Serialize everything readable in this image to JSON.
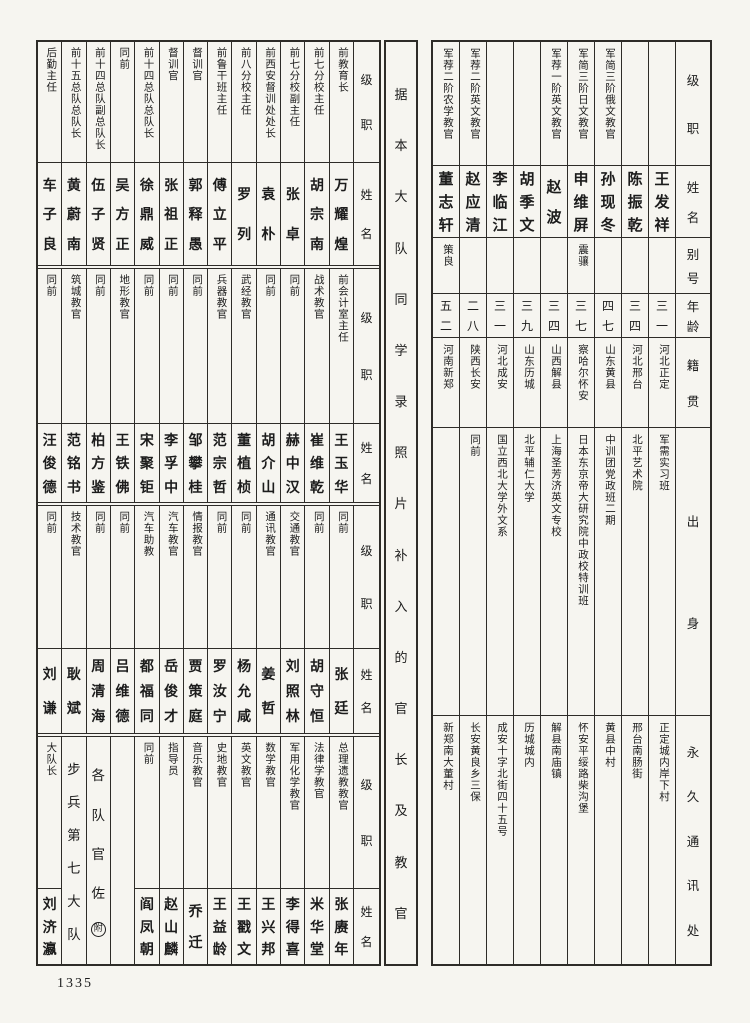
{
  "page": {
    "number": "1335"
  },
  "middle_title": "据本大队同学录照片补入的官长及教官",
  "colors": {
    "paper": "#f6f5f0",
    "ink": "#1c1c1c",
    "line": "#2e2c28"
  },
  "right_section": {
    "headers": {
      "rank": "级职",
      "name": "姓名",
      "alias": "别号",
      "age": "年龄",
      "native": "籍贯",
      "origin": "出身",
      "address": "永久通讯处"
    },
    "people": [
      {
        "rank": "",
        "name": "王发祥",
        "alias": "",
        "age": "三一",
        "native": "河北正定",
        "origin": "军需实习班",
        "address": "正定城内岸下村"
      },
      {
        "rank": "",
        "name": "陈振乾",
        "alias": "",
        "age": "三四",
        "native": "河北邢台",
        "origin": "北平艺术院",
        "address": "邢台南肠街"
      },
      {
        "rank": "军简三阶俄文教官",
        "name": "孙现冬",
        "alias": "",
        "age": "四七",
        "native": "山东黄县",
        "origin": "中训团党政班二期",
        "address": "黄县中村"
      },
      {
        "rank": "军简三阶日文教官",
        "name": "申维屏",
        "alias": "震骧",
        "age": "三七",
        "native": "察哈尔怀安",
        "origin": "日本东京帝大研究院中政校特训班",
        "address": "怀安平绥路柴沟堡"
      },
      {
        "rank": "军荐一阶英文教官",
        "name": "赵波",
        "alias": "",
        "age": "三四",
        "native": "山西解县",
        "origin": "上海圣芳济英文专校",
        "address": "解县南庙镇"
      },
      {
        "rank": "",
        "name": "胡季文",
        "alias": "",
        "age": "三九",
        "native": "山东历城",
        "origin": "北平辅仁大学",
        "address": "历城城内"
      },
      {
        "rank": "",
        "name": "李临江",
        "alias": "",
        "age": "三一",
        "native": "河北成安",
        "origin": "国立西北大学外文系",
        "address": "成安十字北街四十五号"
      },
      {
        "rank": "军荐二阶英文教官",
        "name": "赵应清",
        "alias": "",
        "age": "二八",
        "native": "陕西长安",
        "origin": "同前",
        "address": "长安黄良乡三保"
      },
      {
        "rank": "军荐二阶农学教官",
        "name": "董志轩",
        "alias": "策良",
        "age": "五二",
        "native": "河南新郑",
        "origin": "",
        "address": "新郑南大董村"
      }
    ]
  },
  "left_section": {
    "headers": {
      "rank": "级职",
      "name": "姓名"
    },
    "tiers": [
      {
        "people": [
          {
            "rank": "前教育长",
            "name": "万耀煌"
          },
          {
            "rank": "前七分校主任",
            "name": "胡宗南"
          },
          {
            "rank": "前七分校副主任",
            "name": "张卓"
          },
          {
            "rank": "前西安督训处处长",
            "name": "袁朴"
          },
          {
            "rank": "前八分校主任",
            "name": "罗列"
          },
          {
            "rank": "前鲁干班主任",
            "name": "傅立平"
          },
          {
            "rank": "督训官",
            "name": "郭释愚"
          },
          {
            "rank": "督训官",
            "name": "张祖正"
          },
          {
            "rank": "前十四总队总队长",
            "name": "徐鼎威"
          },
          {
            "rank": "同前",
            "name": "吴方正"
          },
          {
            "rank": "前十四总队副总队长",
            "name": "伍子贤"
          },
          {
            "rank": "前十五总队总队长",
            "name": "黄蔚南"
          },
          {
            "rank": "后勤主任",
            "name": "车子良"
          }
        ]
      },
      {
        "people": [
          {
            "rank": "前会计室主任",
            "name": "王玉华"
          },
          {
            "rank": "战术教官",
            "name": "崔维乾"
          },
          {
            "rank": "同前",
            "name": "赫中汉"
          },
          {
            "rank": "同前",
            "name": "胡介山"
          },
          {
            "rank": "武经教官",
            "name": "董植桢"
          },
          {
            "rank": "兵器教官",
            "name": "范宗哲"
          },
          {
            "rank": "同前",
            "name": "邹攀桂"
          },
          {
            "rank": "同前",
            "name": "李孚中"
          },
          {
            "rank": "同前",
            "name": "宋聚钜"
          },
          {
            "rank": "地形教官",
            "name": "王铁佛"
          },
          {
            "rank": "同前",
            "name": "柏方鉴"
          },
          {
            "rank": "筑城教官",
            "name": "范铭书"
          },
          {
            "rank": "同前",
            "name": "汪俊德"
          }
        ]
      },
      {
        "people": [
          {
            "rank": "同前",
            "name": "张廷"
          },
          {
            "rank": "同前",
            "name": "胡守恒"
          },
          {
            "rank": "交通教官",
            "name": "刘照林"
          },
          {
            "rank": "通讯教官",
            "name": "姜哲"
          },
          {
            "rank": "同前",
            "name": "杨允咸"
          },
          {
            "rank": "同前",
            "name": "罗汝宁"
          },
          {
            "rank": "情报教官",
            "name": "贾策庭"
          },
          {
            "rank": "汽车教官",
            "name": "岳俊才"
          },
          {
            "rank": "汽车助教",
            "name": "都福同"
          },
          {
            "rank": "同前",
            "name": "吕维德"
          },
          {
            "rank": "同前",
            "name": "周清海"
          },
          {
            "rank": "技术教官",
            "name": "耿斌"
          },
          {
            "rank": "同前",
            "name": "刘谦"
          }
        ]
      },
      {
        "people": [
          {
            "rank": "总理遗教教官",
            "name": "张赓年"
          },
          {
            "rank": "法律学教官",
            "name": "米华堂"
          },
          {
            "rank": "军用化学教官",
            "name": "李得喜"
          },
          {
            "rank": "数学教官",
            "name": "王兴邦"
          },
          {
            "rank": "英文教官",
            "name": "王戳文"
          },
          {
            "rank": "史地教官",
            "name": "王益龄"
          },
          {
            "rank": "音乐教官",
            "name": "乔迁"
          },
          {
            "rank": "指导员",
            "name": "赵山麟"
          },
          {
            "rank": "同前",
            "name": "阎凤朝"
          },
          {
            "empty": true
          },
          {
            "span": "各队官佐",
            "badge": "附"
          },
          {
            "span": "步兵第七大队"
          },
          {
            "rank": "大队长",
            "name": "刘济瀛"
          }
        ]
      }
    ]
  }
}
